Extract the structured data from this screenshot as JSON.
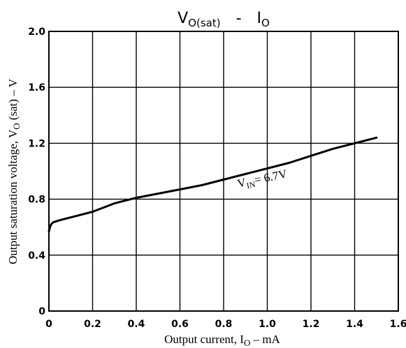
{
  "chart_data": {
    "type": "line",
    "title": {
      "main": "V",
      "main_sub": "O(sat)",
      "dash": "-",
      "right": "I",
      "right_sub": "O"
    },
    "xlabel": {
      "pre": "Output current, I",
      "sub": "O",
      "post": " – mA"
    },
    "ylabel": {
      "pre": "Output saturation voltage, V",
      "sub": "O",
      "post": " (sat) – V"
    },
    "xlim": [
      0,
      1.6
    ],
    "ylim": [
      0,
      2.0
    ],
    "x_ticks": [
      "0",
      "0.2",
      "0.4",
      "0.6",
      "0.8",
      "1.0",
      "1.2",
      "1.4",
      "1.6"
    ],
    "y_ticks": [
      "0",
      "0.4",
      "0.8",
      "1.2",
      "1.6",
      "2.0"
    ],
    "grid": true,
    "series": [
      {
        "name": "",
        "x": [
          0.0,
          0.005,
          0.01,
          0.02,
          0.05,
          0.1,
          0.2,
          0.3,
          0.4,
          0.5,
          0.6,
          0.7,
          0.8,
          0.9,
          1.0,
          1.1,
          1.2,
          1.3,
          1.4,
          1.5
        ],
        "y": [
          0.57,
          0.6,
          0.62,
          0.635,
          0.65,
          0.67,
          0.71,
          0.77,
          0.81,
          0.84,
          0.87,
          0.9,
          0.94,
          0.98,
          1.02,
          1.06,
          1.11,
          1.16,
          1.2,
          1.24
        ]
      }
    ],
    "annotations": [
      {
        "main": "V",
        "sub": "IN",
        "rest": "= 6.7V",
        "x": 0.98,
        "y": 0.92
      }
    ]
  }
}
